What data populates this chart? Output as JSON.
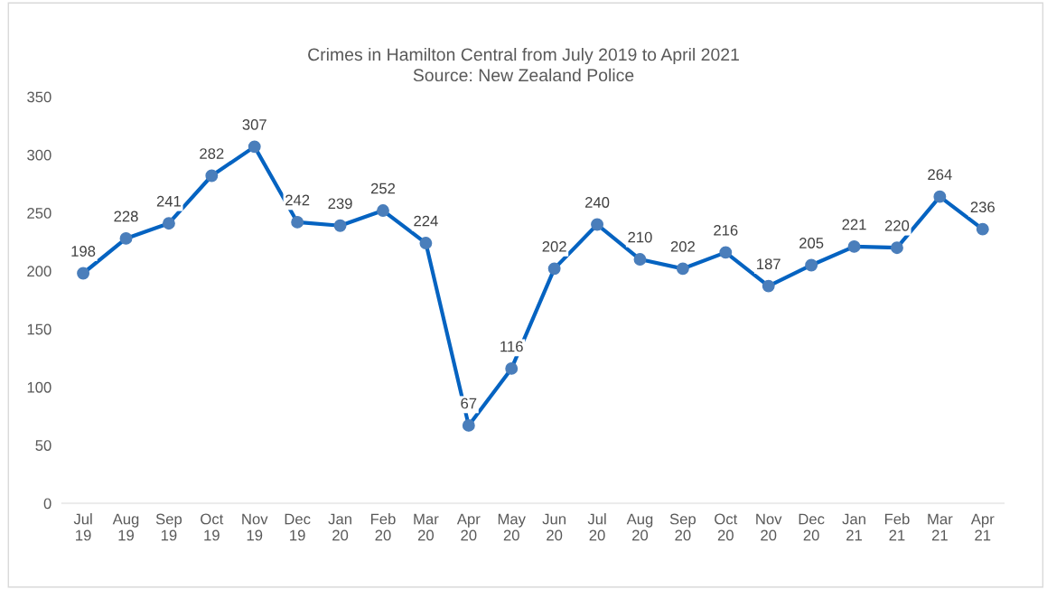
{
  "chart_data": {
    "type": "line",
    "title": "Crimes in Hamilton Central from July 2019 to April 2021",
    "subtitle": "Source: New Zealand Police",
    "categories": [
      "Jul\n19",
      "Aug\n19",
      "Sep\n19",
      "Oct\n19",
      "Nov\n19",
      "Dec\n19",
      "Jan\n20",
      "Feb\n20",
      "Mar\n20",
      "Apr\n20",
      "May\n20",
      "Jun\n20",
      "Jul\n20",
      "Aug\n20",
      "Sep\n20",
      "Oct\n20",
      "Nov\n20",
      "Dec\n20",
      "Jan\n21",
      "Feb\n21",
      "Mar\n21",
      "Apr\n21"
    ],
    "series": [
      {
        "color": "#0563c1",
        "values": [
          198,
          228,
          241,
          282,
          307,
          242,
          239,
          252,
          224,
          67,
          116,
          202,
          240,
          210,
          202,
          216,
          187,
          205,
          221,
          220,
          264,
          236
        ]
      }
    ],
    "ylim": [
      0,
      350
    ],
    "yticks": [
      0,
      50,
      100,
      150,
      200,
      250,
      300,
      350
    ],
    "grid": false,
    "marker": "circle",
    "line_style": "solid",
    "data_labels": true
  }
}
